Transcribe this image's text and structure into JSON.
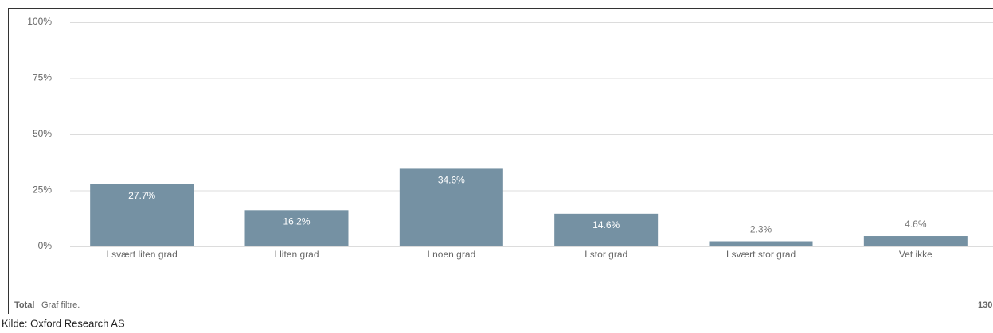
{
  "chart_data": {
    "type": "bar",
    "categories": [
      "I svært liten grad",
      "I liten grad",
      "I noen grad",
      "I stor grad",
      "I svært stor grad",
      "Vet ikke"
    ],
    "values": [
      27.7,
      16.2,
      34.6,
      14.6,
      2.3,
      4.6
    ],
    "value_labels": [
      "27.7%",
      "16.2%",
      "34.6%",
      "14.6%",
      "2.3%",
      "4.6%"
    ],
    "color": "#7591a3",
    "ylim": [
      0,
      100
    ],
    "yticks": [
      {
        "value": 0,
        "label": "0%"
      },
      {
        "value": 25,
        "label": "25%"
      },
      {
        "value": 50,
        "label": "50%"
      },
      {
        "value": 75,
        "label": "75%"
      },
      {
        "value": 100,
        "label": "100%"
      }
    ],
    "grid": true
  },
  "footer": {
    "total": "Total",
    "filter": "Graf filtre.",
    "count": 130
  },
  "source": "Kilde: Oxford Research AS"
}
